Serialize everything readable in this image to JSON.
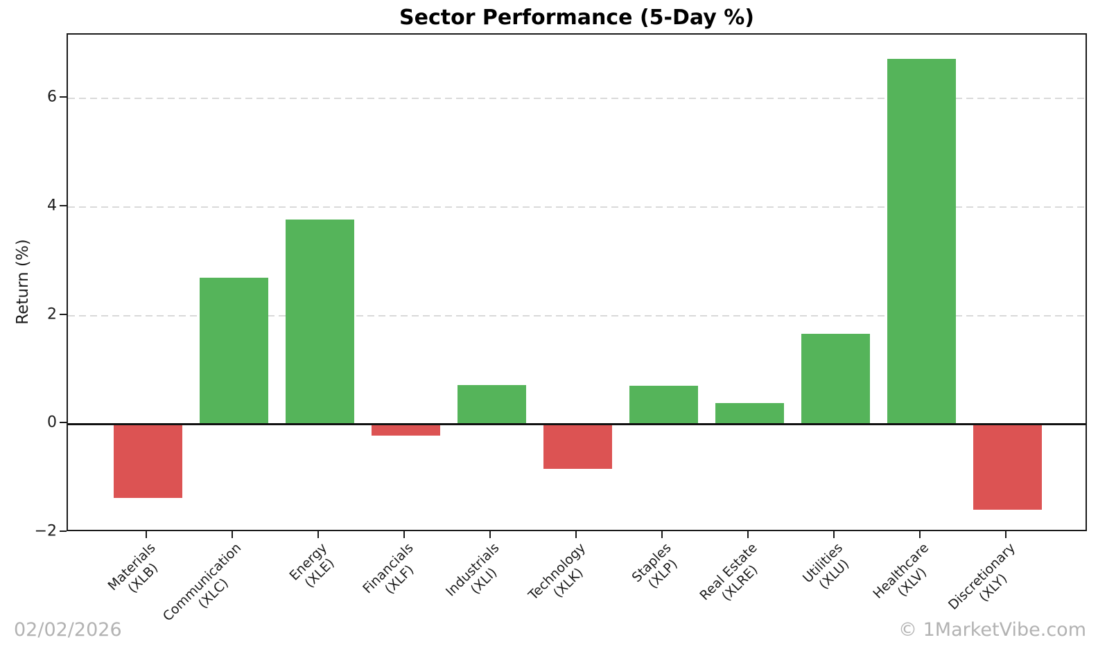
{
  "footer": {
    "date": "02/02/2026",
    "attribution": "© 1MarketVibe.com"
  },
  "chart_data": {
    "type": "bar",
    "title": "Sector Performance (5-Day %)",
    "xlabel": "",
    "ylabel": "Return (%)",
    "ylim": [
      -2,
      7.18
    ],
    "yticks": [
      -2,
      0,
      2,
      4,
      6
    ],
    "grid": "horizontal dashed gridlines",
    "zero_line": true,
    "legend": "none",
    "bar_colors": {
      "positive": "#55b45a",
      "negative": "#dc5353"
    },
    "categories": [
      "Materials",
      "Communication",
      "Energy",
      "Financials",
      "Industrials",
      "Technology",
      "Staples",
      "Real Estate",
      "Utilities",
      "Healthcare",
      "Discretionary"
    ],
    "tickers": [
      "(XLB)",
      "(XLC)",
      "(XLE)",
      "(XLF)",
      "(XLI)",
      "(XLK)",
      "(XLP)",
      "(XLRE)",
      "(XLU)",
      "(XLV)",
      "(XLY)"
    ],
    "values": [
      -1.36,
      2.7,
      3.77,
      -0.21,
      0.72,
      -0.83,
      0.71,
      0.39,
      1.67,
      6.73,
      -1.58
    ]
  }
}
